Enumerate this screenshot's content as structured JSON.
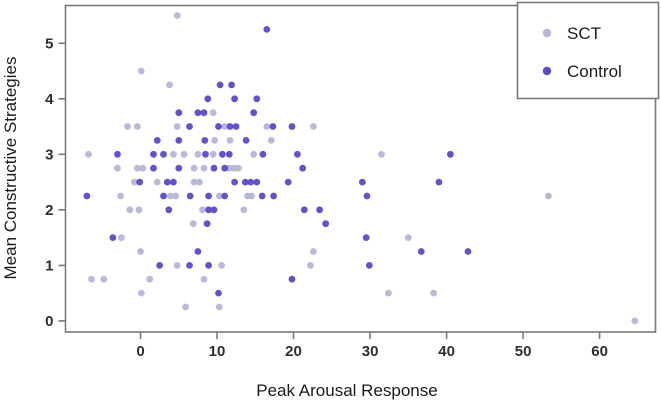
{
  "chart_data": {
    "type": "scatter",
    "title": "",
    "xlabel": "Peak Arousal Response",
    "ylabel": "Mean Constructive Strategies",
    "xlim": [
      -9.8,
      67.3
    ],
    "ylim": [
      -0.2,
      5.68
    ],
    "x_ticks": [
      0,
      10,
      20,
      30,
      40,
      50,
      60
    ],
    "y_ticks": [
      0,
      1,
      2,
      3,
      4,
      5
    ],
    "grid": false,
    "legend_position": "top-right",
    "point_radius": 3.4,
    "frame_color": "#7a7a7a",
    "series": [
      {
        "name": "SCT",
        "color": "#b4b6d6",
        "points": [
          [
            4.8,
            5.5
          ],
          [
            0.1,
            4.5
          ],
          [
            3.8,
            4.25
          ],
          [
            9.5,
            3.75
          ],
          [
            -1.7,
            3.5
          ],
          [
            -0.4,
            3.5
          ],
          [
            4.8,
            3.5
          ],
          [
            11.0,
            3.5
          ],
          [
            16.5,
            3.5
          ],
          [
            22.6,
            3.5
          ],
          [
            9.7,
            3.25
          ],
          [
            11.7,
            3.25
          ],
          [
            17.1,
            3.25
          ],
          [
            -6.8,
            3.0
          ],
          [
            4.3,
            3.0
          ],
          [
            5.7,
            3.0
          ],
          [
            7.5,
            3.0
          ],
          [
            9.5,
            3.0
          ],
          [
            14.8,
            3.0
          ],
          [
            31.5,
            3.0
          ],
          [
            -3.0,
            2.75
          ],
          [
            -0.4,
            2.75
          ],
          [
            0.3,
            2.75
          ],
          [
            7.0,
            2.75
          ],
          [
            8.3,
            2.75
          ],
          [
            11.6,
            2.75
          ],
          [
            12.2,
            2.75
          ],
          [
            12.8,
            2.75
          ],
          [
            -0.8,
            2.5
          ],
          [
            2.2,
            2.5
          ],
          [
            7.0,
            2.5
          ],
          [
            7.7,
            2.5
          ],
          [
            -2.6,
            2.25
          ],
          [
            3.9,
            2.25
          ],
          [
            4.6,
            2.25
          ],
          [
            10.3,
            2.25
          ],
          [
            14.0,
            2.25
          ],
          [
            14.5,
            2.25
          ],
          [
            53.3,
            2.25
          ],
          [
            -1.4,
            2.0
          ],
          [
            -0.2,
            2.0
          ],
          [
            8.1,
            2.0
          ],
          [
            13.5,
            2.0
          ],
          [
            6.9,
            1.75
          ],
          [
            -2.5,
            1.5
          ],
          [
            35.0,
            1.5
          ],
          [
            0.0,
            1.25
          ],
          [
            22.6,
            1.25
          ],
          [
            4.8,
            1.0
          ],
          [
            10.6,
            1.0
          ],
          [
            22.2,
            1.0
          ],
          [
            -6.4,
            0.75
          ],
          [
            -4.8,
            0.75
          ],
          [
            1.2,
            0.75
          ],
          [
            8.3,
            0.75
          ],
          [
            0.1,
            0.5
          ],
          [
            32.4,
            0.5
          ],
          [
            38.3,
            0.5
          ],
          [
            5.9,
            0.25
          ],
          [
            10.3,
            0.25
          ],
          [
            64.6,
            0.0
          ]
        ]
      },
      {
        "name": "Control",
        "color": "#5b4ac6",
        "points": [
          [
            16.5,
            5.25
          ],
          [
            10.4,
            4.25
          ],
          [
            11.9,
            4.25
          ],
          [
            8.8,
            4.0
          ],
          [
            12.3,
            4.0
          ],
          [
            15.2,
            4.0
          ],
          [
            5.0,
            3.75
          ],
          [
            7.5,
            3.75
          ],
          [
            8.3,
            3.75
          ],
          [
            14.8,
            3.75
          ],
          [
            6.4,
            3.5
          ],
          [
            10.2,
            3.5
          ],
          [
            11.7,
            3.5
          ],
          [
            12.5,
            3.5
          ],
          [
            17.3,
            3.5
          ],
          [
            19.8,
            3.5
          ],
          [
            2.2,
            3.25
          ],
          [
            5.0,
            3.25
          ],
          [
            8.4,
            3.25
          ],
          [
            13.8,
            3.25
          ],
          [
            -3.0,
            3.0
          ],
          [
            1.7,
            3.0
          ],
          [
            3.0,
            3.0
          ],
          [
            8.5,
            3.0
          ],
          [
            10.7,
            3.0
          ],
          [
            11.6,
            3.0
          ],
          [
            16.0,
            3.0
          ],
          [
            20.5,
            3.0
          ],
          [
            40.5,
            3.0
          ],
          [
            1.7,
            2.75
          ],
          [
            5.0,
            2.75
          ],
          [
            9.6,
            2.75
          ],
          [
            11.0,
            2.75
          ],
          [
            21.2,
            2.75
          ],
          [
            -0.1,
            2.5
          ],
          [
            3.5,
            2.5
          ],
          [
            4.3,
            2.5
          ],
          [
            12.3,
            2.5
          ],
          [
            13.7,
            2.5
          ],
          [
            14.4,
            2.5
          ],
          [
            15.2,
            2.5
          ],
          [
            19.3,
            2.5
          ],
          [
            29.0,
            2.5
          ],
          [
            39.0,
            2.5
          ],
          [
            -7.0,
            2.25
          ],
          [
            3.0,
            2.25
          ],
          [
            6.5,
            2.25
          ],
          [
            8.9,
            2.25
          ],
          [
            11.0,
            2.25
          ],
          [
            15.9,
            2.25
          ],
          [
            17.4,
            2.25
          ],
          [
            29.6,
            2.25
          ],
          [
            3.7,
            2.0
          ],
          [
            8.9,
            2.0
          ],
          [
            9.6,
            2.0
          ],
          [
            21.4,
            2.0
          ],
          [
            23.4,
            2.0
          ],
          [
            8.7,
            1.75
          ],
          [
            24.2,
            1.75
          ],
          [
            -3.6,
            1.5
          ],
          [
            29.5,
            1.5
          ],
          [
            7.5,
            1.25
          ],
          [
            36.7,
            1.25
          ],
          [
            42.8,
            1.25
          ],
          [
            2.5,
            1.0
          ],
          [
            6.4,
            1.0
          ],
          [
            8.9,
            1.0
          ],
          [
            29.9,
            1.0
          ],
          [
            19.8,
            0.75
          ],
          [
            10.2,
            0.5
          ]
        ]
      }
    ]
  }
}
